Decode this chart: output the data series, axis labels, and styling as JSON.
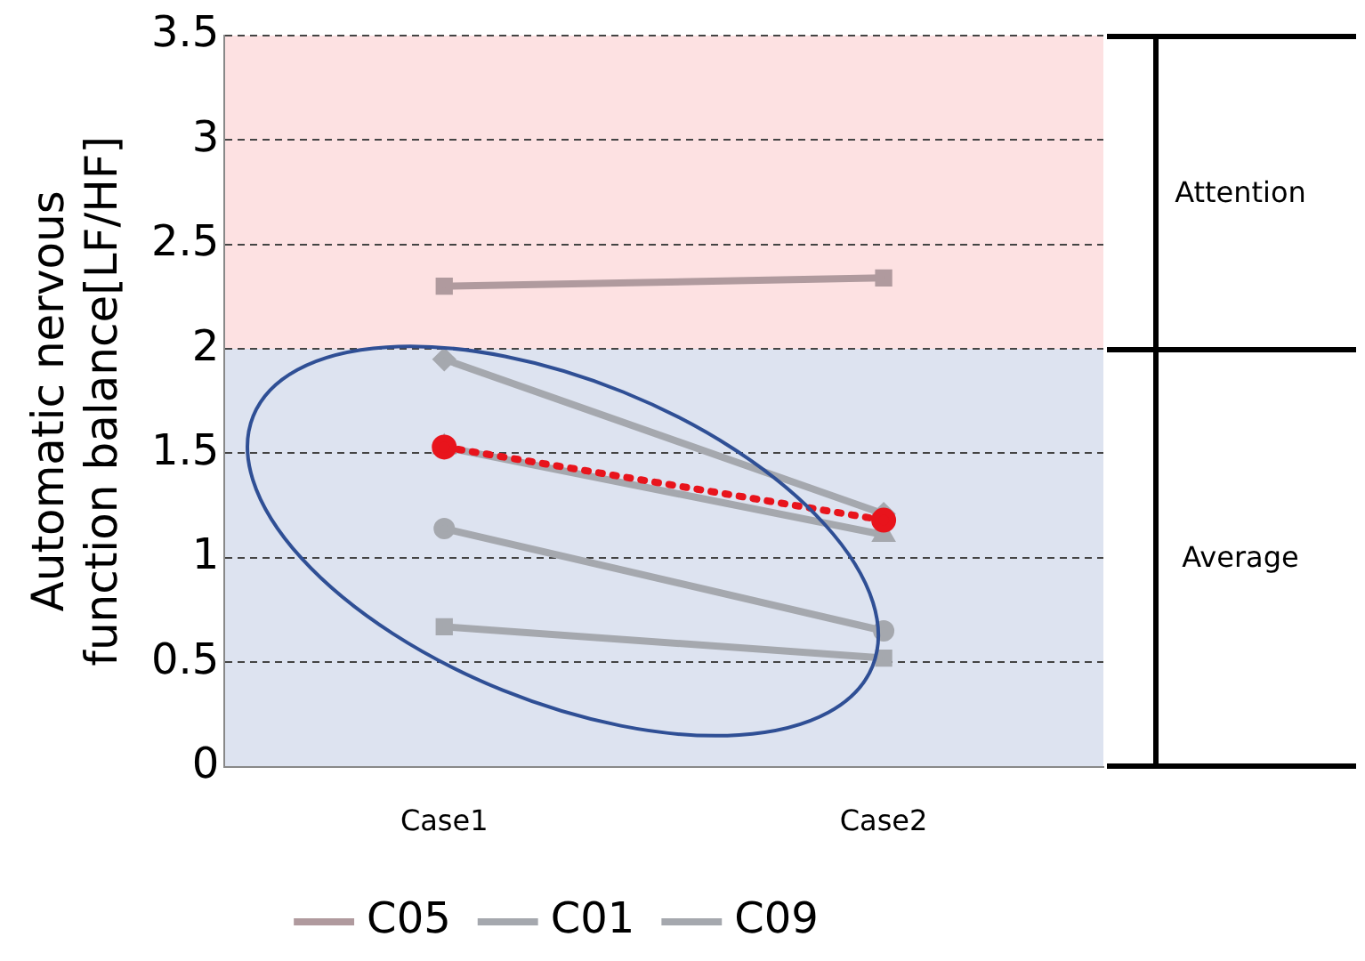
{
  "chart_data": {
    "type": "line",
    "ylabel": "Automatic nervous\nfunction balance[LF/HF]",
    "categories": [
      "Case1",
      "Case2"
    ],
    "series": [
      {
        "name": "C05",
        "color": "#b09a9e",
        "values": [
          2.3,
          2.34
        ],
        "marker": "square"
      },
      {
        "name": "C01",
        "color": "#a5a8ae",
        "values": [
          1.95,
          1.21
        ],
        "marker": "diamond"
      },
      {
        "name": "C09",
        "color": "#a5a8ae",
        "values": [
          1.53,
          1.11
        ],
        "marker": "triangle"
      },
      {
        "color": "#a5a8ae",
        "values": [
          1.14,
          0.65
        ],
        "marker": "circle"
      },
      {
        "color": "#a5a8ae",
        "values": [
          0.67,
          0.52
        ],
        "marker": "square"
      },
      {
        "color": "#e8141c",
        "values": [
          1.53,
          1.18
        ],
        "marker": "circle",
        "line_style": "dotted"
      }
    ],
    "ylim": [
      0,
      3.5
    ],
    "yticks": [
      0,
      0.5,
      1,
      1.5,
      2,
      2.5,
      3,
      3.5
    ],
    "grid": "y",
    "legend": "bottom",
    "bands": [
      {
        "axis": "y",
        "from": 2,
        "to": 3.5,
        "label": "Attention",
        "color": "#fde1e2"
      },
      {
        "axis": "y",
        "from": 0,
        "to": 2,
        "label": "Average",
        "color": "#dde3f0"
      }
    ]
  }
}
